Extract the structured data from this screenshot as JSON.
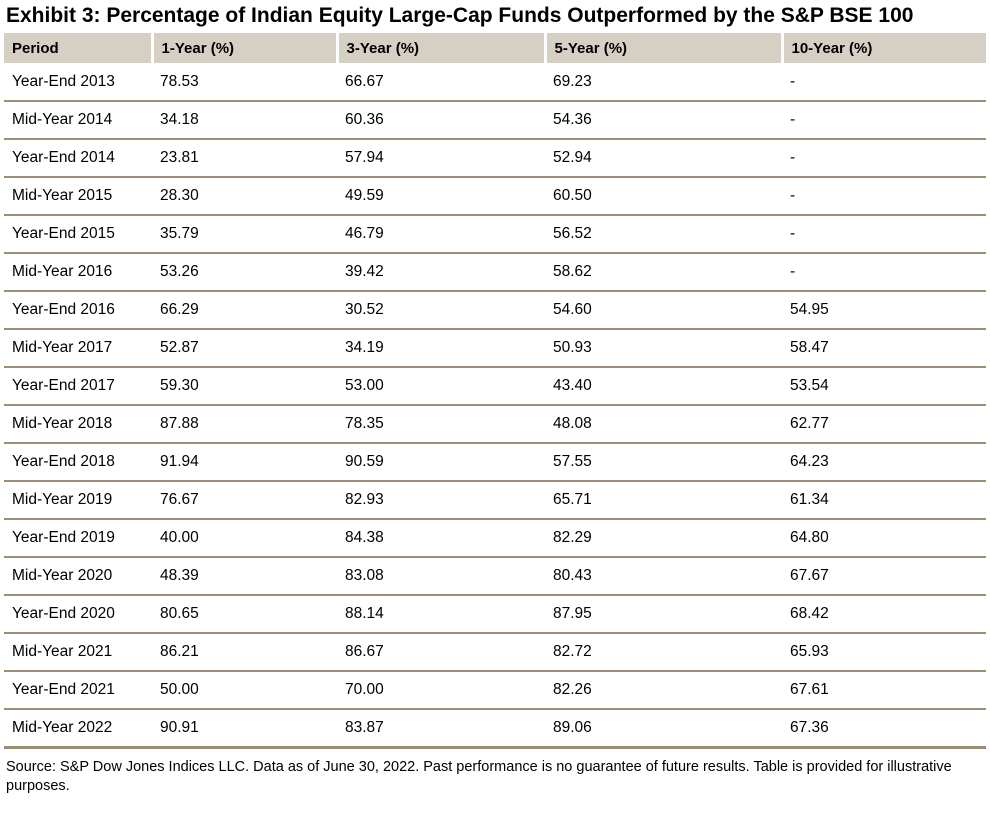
{
  "title": "Exhibit 3: Percentage of Indian Equity Large-Cap Funds Outperformed by the S&P BSE 100",
  "table": {
    "columns": [
      "Period",
      "1-Year (%)",
      "3-Year (%)",
      "5-Year (%)",
      "10-Year (%)"
    ],
    "rows": [
      [
        "Year-End 2013",
        "78.53",
        "66.67",
        "69.23",
        "-"
      ],
      [
        "Mid-Year 2014",
        "34.18",
        "60.36",
        "54.36",
        "-"
      ],
      [
        "Year-End 2014",
        "23.81",
        "57.94",
        "52.94",
        "-"
      ],
      [
        "Mid-Year 2015",
        "28.30",
        "49.59",
        "60.50",
        "-"
      ],
      [
        "Year-End 2015",
        "35.79",
        "46.79",
        "56.52",
        "-"
      ],
      [
        "Mid-Year 2016",
        "53.26",
        "39.42",
        "58.62",
        "-"
      ],
      [
        "Year-End 2016",
        "66.29",
        "30.52",
        "54.60",
        "54.95"
      ],
      [
        "Mid-Year 2017",
        "52.87",
        "34.19",
        "50.93",
        "58.47"
      ],
      [
        "Year-End 2017",
        "59.30",
        "53.00",
        "43.40",
        "53.54"
      ],
      [
        "Mid-Year 2018",
        "87.88",
        "78.35",
        "48.08",
        "62.77"
      ],
      [
        "Year-End 2018",
        "91.94",
        "90.59",
        "57.55",
        "64.23"
      ],
      [
        "Mid-Year 2019",
        "76.67",
        "82.93",
        "65.71",
        "61.34"
      ],
      [
        "Year-End 2019",
        "40.00",
        "84.38",
        "82.29",
        "64.80"
      ],
      [
        "Mid-Year 2020",
        "48.39",
        "83.08",
        "80.43",
        "67.67"
      ],
      [
        "Year-End 2020",
        "80.65",
        "88.14",
        "87.95",
        "68.42"
      ],
      [
        "Mid-Year 2021",
        "86.21",
        "86.67",
        "82.72",
        "65.93"
      ],
      [
        "Year-End 2021",
        "50.00",
        "70.00",
        "82.26",
        "67.61"
      ],
      [
        "Mid-Year 2022",
        "90.91",
        "83.87",
        "89.06",
        "67.36"
      ]
    ]
  },
  "footer": "Source: S&P Dow Jones Indices LLC. Data as of June 30, 2022. Past performance is no guarantee of future results. Table is provided for illustrative purposes.",
  "colors": {
    "header_bg": "#d5d0c3",
    "row_border": "#9a8d73"
  }
}
